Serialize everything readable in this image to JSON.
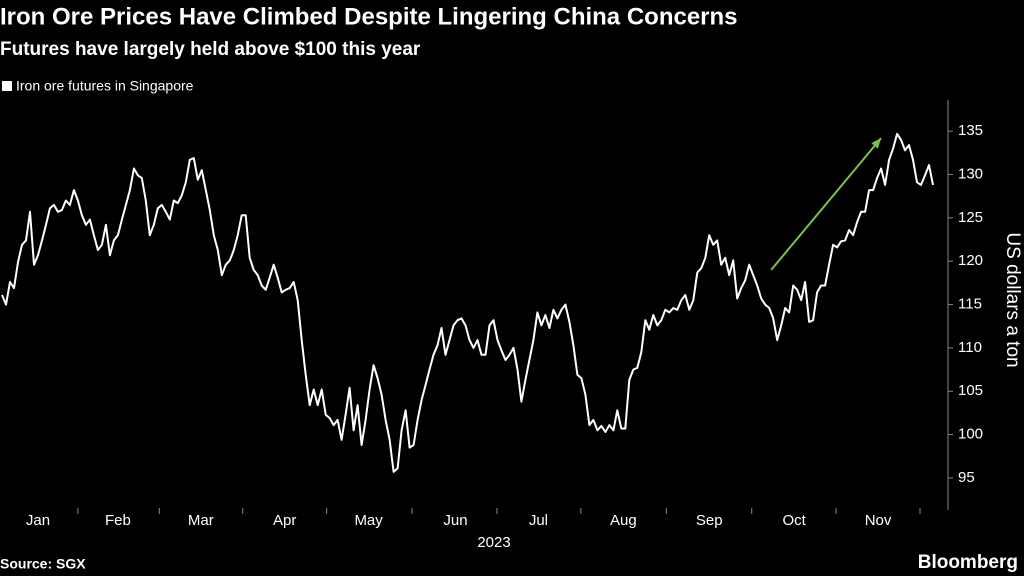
{
  "chart_data": {
    "type": "line",
    "title": "Iron Ore Prices Have Climbed Despite Lingering China Concerns",
    "subtitle": "Futures have largely held above $100 this year",
    "y_label": "US dollars a ton",
    "x_label": "2023",
    "source": "Source: SGX",
    "brand": "Bloomberg",
    "series": [
      {
        "name": "Iron ore futures in Singapore",
        "color": "#ffffff",
        "values": [
          116.1,
          115,
          117.6,
          116.9,
          119.9,
          121.9,
          122.4,
          125.7,
          119.6,
          120.7,
          122.4,
          124.2,
          126.1,
          126.5,
          125.7,
          125.9,
          127,
          126.5,
          128.2,
          127,
          125.3,
          124.2,
          124.8,
          123,
          121.3,
          121.9,
          124.2,
          120.7,
          122.4,
          123,
          124.8,
          126.5,
          128.2,
          130.7,
          129.9,
          129.6,
          127,
          123,
          124.2,
          126.1,
          126.5,
          125.7,
          124.8,
          127,
          126.7,
          127.6,
          129.1,
          131.7,
          131.9,
          129.4,
          130.5,
          128.2,
          125.9,
          123,
          121.3,
          118.4,
          119.6,
          120.1,
          121.3,
          123,
          125.3,
          125.3,
          120.4,
          119,
          118.4,
          117.2,
          116.7,
          118.1,
          119.6,
          118.1,
          116.4,
          116.7,
          116.9,
          117.6,
          115.5,
          110.9,
          106.9,
          103.4,
          105.2,
          103.4,
          105.2,
          102.3,
          101.9,
          101.1,
          101.7,
          99.4,
          102.3,
          105.4,
          100.5,
          103.4,
          98.8,
          101.7,
          105.2,
          108,
          106.5,
          104.6,
          101.7,
          99.4,
          95.7,
          96.1,
          100.5,
          102.8,
          98.5,
          98.8,
          101.7,
          104,
          105.7,
          107.5,
          109.2,
          110.3,
          112.3,
          109.2,
          110.9,
          112.6,
          113.2,
          113.4,
          112.6,
          110.9,
          110,
          110.9,
          109.2,
          109.2,
          112.6,
          113.2,
          110.9,
          109.7,
          108.6,
          109.2,
          110,
          107.5,
          103.8,
          106.3,
          108.6,
          110.9,
          114.1,
          112.6,
          113.8,
          112.3,
          114.4,
          113.4,
          114.4,
          115,
          113,
          110.3,
          106.9,
          106.5,
          104.6,
          101.1,
          101.7,
          100.5,
          101,
          100.3,
          101.1,
          100.5,
          102.8,
          100.7,
          100.7,
          106.3,
          107.5,
          107.7,
          109.5,
          113.2,
          112.1,
          113.8,
          112.6,
          113.2,
          114.4,
          114.1,
          114.6,
          114.4,
          115.5,
          116.1,
          114.4,
          115.5,
          118.7,
          119.2,
          120.4,
          123,
          121.9,
          122.4,
          119.6,
          120.4,
          118.4,
          120.1,
          115.7,
          116.9,
          117.8,
          119.6,
          118.4,
          117.2,
          115.7,
          115,
          114.6,
          113.4,
          110.9,
          112.6,
          114.6,
          114.1,
          117.2,
          116.7,
          115.5,
          117.6,
          113,
          113.2,
          116.4,
          117.2,
          117.2,
          119.6,
          121.9,
          121.6,
          122.3,
          122.4,
          123.6,
          123,
          124.5,
          125.7,
          125.7,
          128.2,
          128.2,
          129.6,
          130.7,
          128.8,
          131.7,
          133,
          134.7,
          134,
          132.8,
          133.4,
          131.7,
          129.1,
          128.8,
          129.9,
          131.1,
          128.8
        ]
      }
    ],
    "xlim": [
      -0.5,
      236
    ],
    "xticks": [
      {
        "value": 9,
        "label": "Jan"
      },
      {
        "value": 29,
        "label": "Feb"
      },
      {
        "value": 49.75,
        "label": "Mar"
      },
      {
        "value": 70.75,
        "label": "Apr"
      },
      {
        "value": 91.75,
        "label": "May"
      },
      {
        "value": 113.5,
        "label": "Jun"
      },
      {
        "value": 134.25,
        "label": "Jul"
      },
      {
        "value": 155.5,
        "label": "Aug"
      },
      {
        "value": 177,
        "label": "Sep"
      },
      {
        "value": 198.25,
        "label": "Oct"
      },
      {
        "value": 219.25,
        "label": "Nov"
      }
    ],
    "ylim": [
      91.3,
      138.6
    ],
    "yticks": [
      95,
      100,
      105,
      110,
      115,
      120,
      125,
      130,
      135
    ],
    "arrow": {
      "from": [
        192.5,
        119
      ],
      "to": [
        220,
        134.2
      ],
      "color": "#7dc242"
    },
    "grid": false
  }
}
